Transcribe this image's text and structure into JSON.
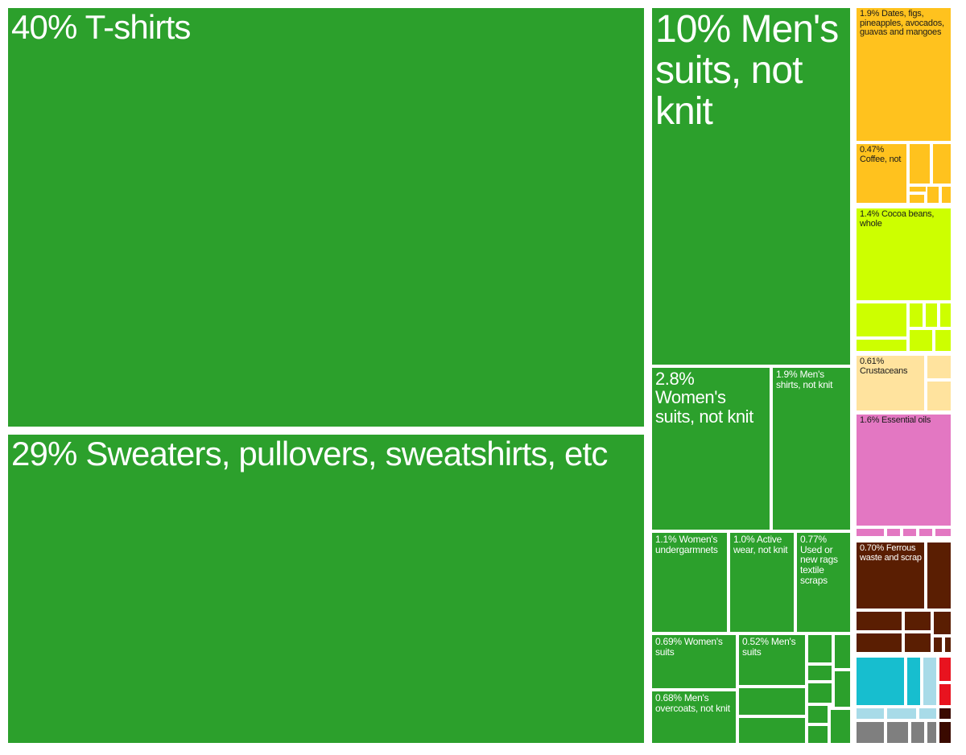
{
  "chart_data": {
    "type": "treemap",
    "title": "",
    "colors": {
      "textiles": "#2ca02c",
      "vegetable_products": "#ffc21e",
      "cocoa": "#cdff00",
      "animal_products": "#ffe39e",
      "chemicals": "#e377c2",
      "metals": "#5a1e02",
      "machinery": "#17becf",
      "light_blue": "#a8dbe8",
      "red": "#e8131f",
      "gray": "#7f7f7f",
      "dark": "#3a0a00"
    },
    "items": [
      {
        "id": "tshirts",
        "label": "40% T-shirts",
        "value": 40,
        "group": "textiles"
      },
      {
        "id": "sweaters",
        "label": "29% Sweaters, pullovers, sweatshirts, etc",
        "value": 29,
        "group": "textiles"
      },
      {
        "id": "mens-suits",
        "label": "10% Men's suits, not knit",
        "value": 10,
        "group": "textiles"
      },
      {
        "id": "womens-suits",
        "label": "2.8% Women's suits, not knit",
        "value": 2.8,
        "group": "textiles"
      },
      {
        "id": "mens-shirts",
        "label": "1.9% Men's shirts, not knit",
        "value": 1.9,
        "group": "textiles"
      },
      {
        "id": "womens-undergarments",
        "label": "1.1% Women's undergarmnets",
        "value": 1.1,
        "group": "textiles"
      },
      {
        "id": "active-wear",
        "label": "1.0% Active wear, not knit",
        "value": 1.0,
        "group": "textiles"
      },
      {
        "id": "used-rags",
        "label": "0.77% Used or new rags textile scraps",
        "value": 0.77,
        "group": "textiles"
      },
      {
        "id": "womens-suits-knit",
        "label": "0.69% Women's suits",
        "value": 0.69,
        "group": "textiles"
      },
      {
        "id": "mens-suits-knit",
        "label": "0.52% Men's suits",
        "value": 0.52,
        "group": "textiles"
      },
      {
        "id": "mens-overcoats",
        "label": "0.68% Men's overcoats, not knit",
        "value": 0.68,
        "group": "textiles"
      },
      {
        "id": "dates-figs",
        "label": "1.9% Dates, figs, pineapples, avocados, guavas and mangoes",
        "value": 1.9,
        "group": "vegetable_products"
      },
      {
        "id": "coffee",
        "label": "0.47% Coffee, not",
        "value": 0.47,
        "group": "vegetable_products"
      },
      {
        "id": "cocoa-beans",
        "label": "1.4% Cocoa beans, whole",
        "value": 1.4,
        "group": "cocoa"
      },
      {
        "id": "crustaceans",
        "label": "0.61% Crustaceans",
        "value": 0.61,
        "group": "animal_products"
      },
      {
        "id": "essential-oils",
        "label": "1.6% Essential oils",
        "value": 1.6,
        "group": "chemicals"
      },
      {
        "id": "ferrous-waste",
        "label": "0.70% Ferrous waste and scrap",
        "value": 0.7,
        "group": "metals"
      }
    ]
  }
}
